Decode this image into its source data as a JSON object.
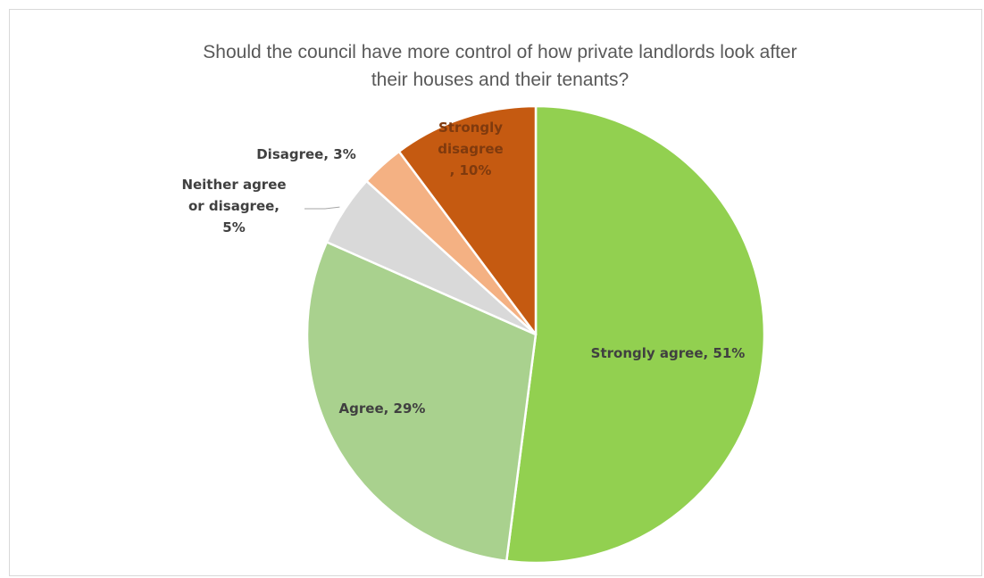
{
  "chart_data": {
    "type": "pie",
    "title_lines": [
      "Should the council have more control of how private landlords look after",
      "their houses and their tenants?"
    ],
    "start_angle_deg": 0,
    "direction": "clockwise",
    "slices": [
      {
        "name": "Strongly agree",
        "value": 51,
        "color": "#92d050",
        "label_lines": [
          "Strongly agree, 51%"
        ],
        "label_color": "#404040"
      },
      {
        "name": "Agree",
        "value": 29,
        "color": "#a9d18e",
        "label_lines": [
          "Agree, 29%"
        ],
        "label_color": "#404040"
      },
      {
        "name": "Neither agree or disagree",
        "value": 5,
        "color": "#d9d9d9",
        "label_lines": [
          "Neither agree",
          "or disagree,",
          "5%"
        ],
        "label_color": "#404040"
      },
      {
        "name": "Disagree",
        "value": 3,
        "color": "#f4b183",
        "label_lines": [
          "Disagree, 3%"
        ],
        "label_color": "#404040"
      },
      {
        "name": "Strongly disagree",
        "value": 10,
        "color": "#c55a11",
        "label_lines": [
          "Strongly",
          "disagree",
          ", 10%"
        ],
        "label_color": "#7f3a0e"
      }
    ]
  }
}
